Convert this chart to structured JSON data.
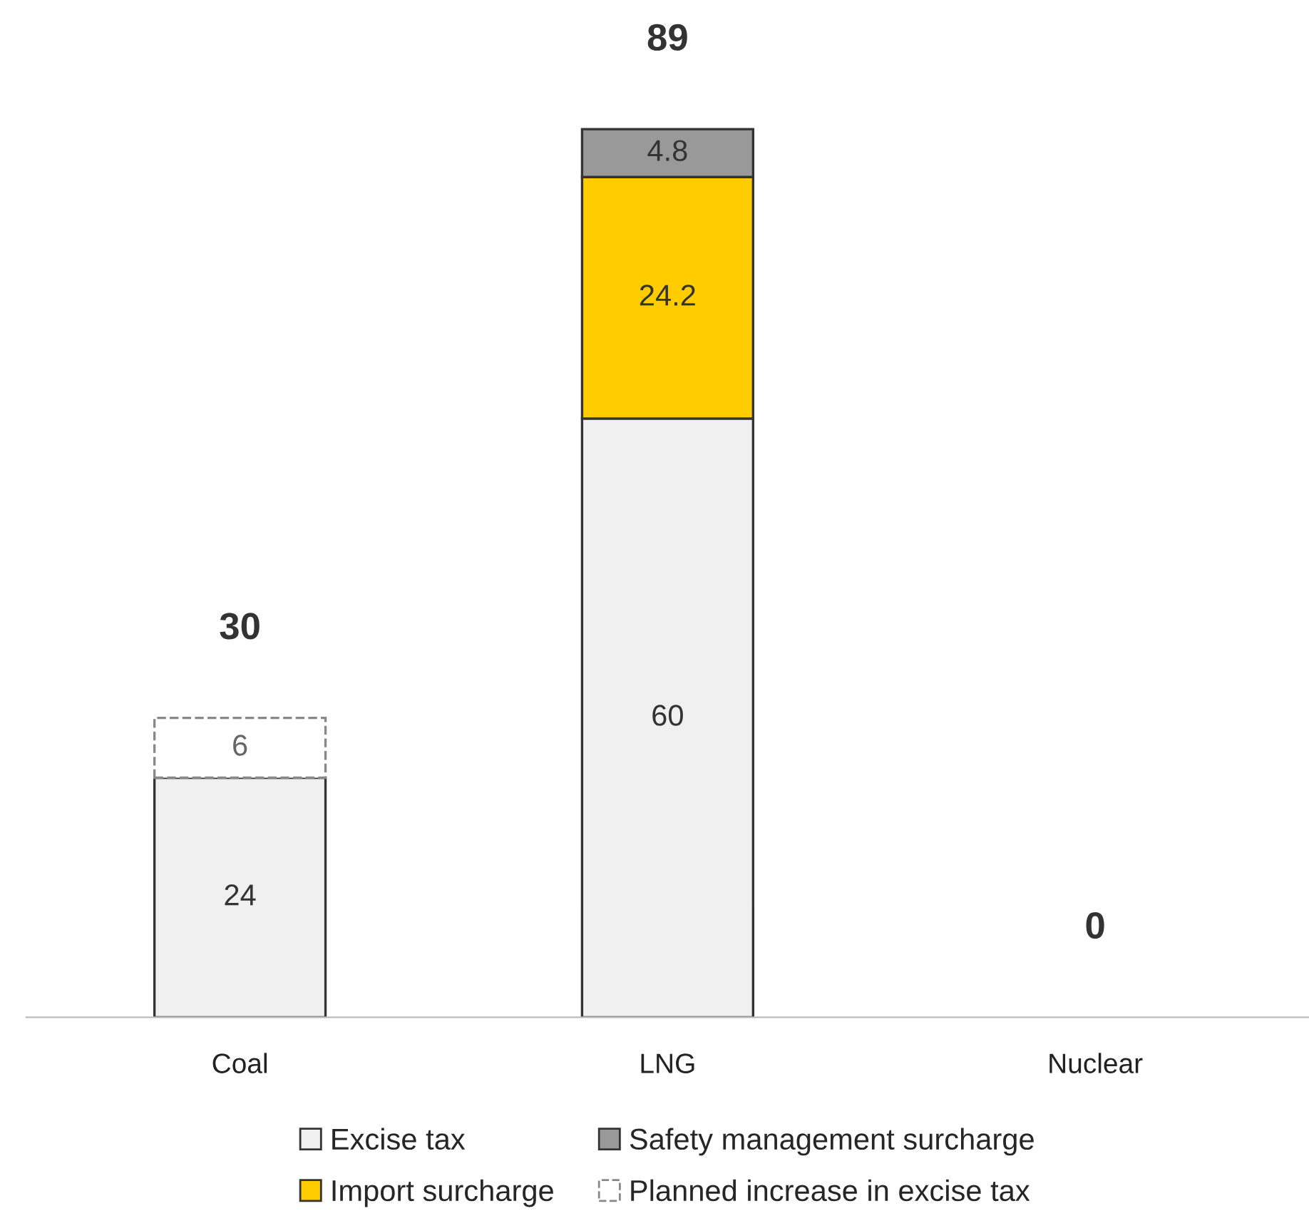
{
  "chart_data": {
    "type": "bar",
    "stacked": true,
    "categories": [
      "Coal",
      "LNG",
      "Nuclear"
    ],
    "series": [
      {
        "name": "Excise tax",
        "color": "#f0f0f0",
        "values": [
          24,
          60,
          null
        ]
      },
      {
        "name": "Import surcharge",
        "color": "#ffcc00",
        "values": [
          null,
          24.2,
          null
        ]
      },
      {
        "name": "Safety management surcharge",
        "color": "#999999",
        "values": [
          null,
          4.8,
          null
        ]
      },
      {
        "name": "Planned increase in excise tax",
        "color": "#ffffff",
        "line_style": "dashed",
        "values": [
          6,
          null,
          null
        ]
      }
    ],
    "data_labels": true,
    "totals": [
      "30",
      "89",
      "0"
    ],
    "legend": "bottom",
    "grid": false
  }
}
